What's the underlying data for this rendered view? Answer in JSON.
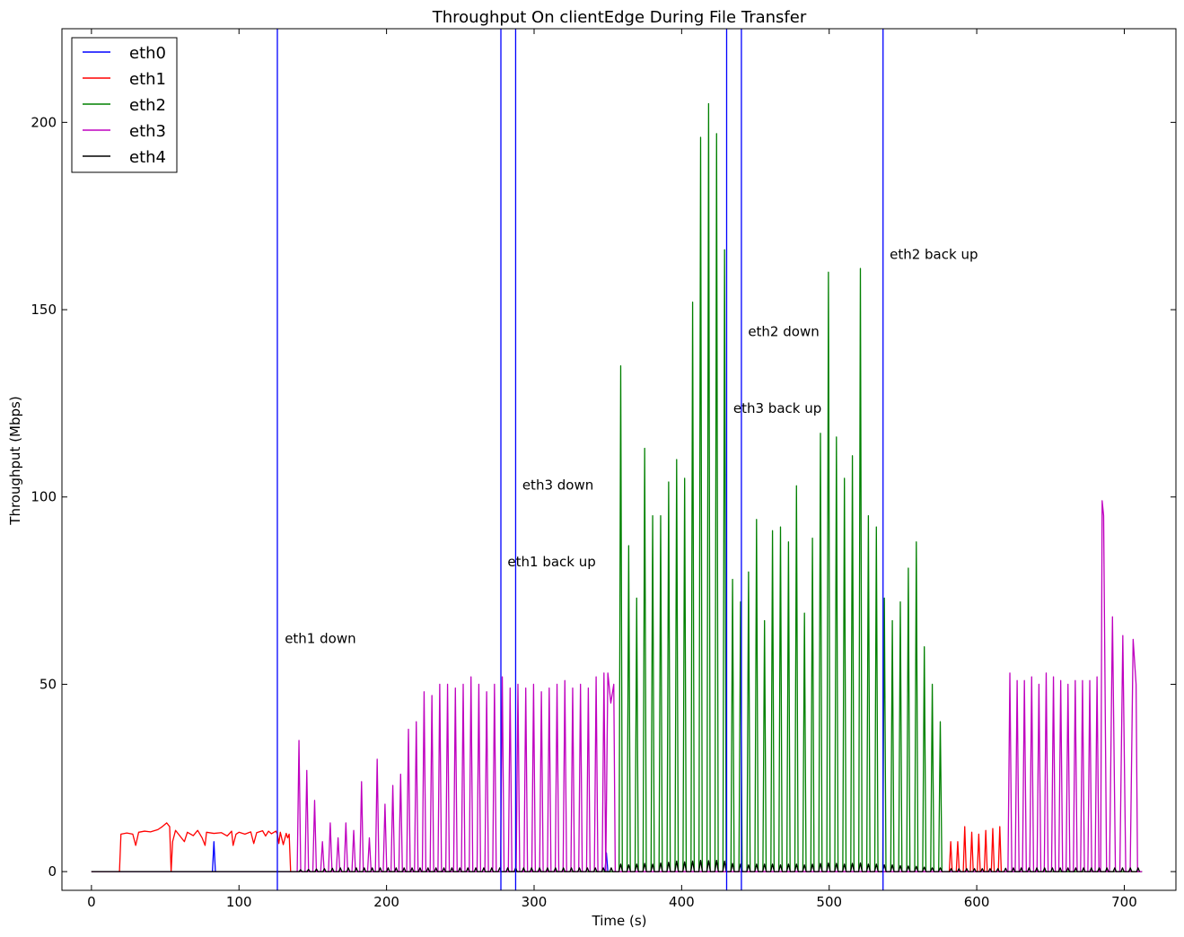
{
  "chart_data": {
    "type": "line",
    "title": "Throughput On clientEdge During File Transfer",
    "xlabel": "Time (s)",
    "ylabel": "Throughput (Mbps)",
    "xlim": [
      -20,
      735
    ],
    "ylim": [
      -5,
      225
    ],
    "xticks": [
      0,
      100,
      200,
      300,
      400,
      500,
      600,
      700
    ],
    "yticks": [
      0,
      50,
      100,
      150,
      200
    ],
    "grid": false,
    "legend_position": "top-left",
    "series": [
      {
        "name": "eth0",
        "color": "#0000ff",
        "segments": [
          {
            "type": "points",
            "points": [
              [
                0,
                0
              ],
              [
                82,
                0
              ],
              [
                83,
                8
              ],
              [
                84,
                0
              ],
              [
                348,
                0
              ],
              [
                349,
                5
              ],
              [
                350,
                0
              ],
              [
                712,
                0
              ]
            ]
          }
        ]
      },
      {
        "name": "eth1",
        "color": "#ff0000",
        "segments": [
          {
            "type": "points",
            "points": [
              [
                0,
                0
              ],
              [
                19,
                0
              ],
              [
                20,
                10
              ],
              [
                24,
                10.3
              ],
              [
                28,
                10
              ],
              [
                30,
                7
              ],
              [
                32,
                10.5
              ],
              [
                36,
                10.8
              ],
              [
                40,
                10.6
              ],
              [
                45,
                11.2
              ],
              [
                48,
                12
              ],
              [
                51,
                13
              ],
              [
                53,
                12
              ],
              [
                54,
                0
              ],
              [
                55,
                8
              ],
              [
                57,
                11
              ],
              [
                60,
                9.5
              ],
              [
                63,
                8
              ],
              [
                65,
                10.5
              ],
              [
                69,
                9.6
              ],
              [
                72,
                11
              ],
              [
                75,
                9
              ],
              [
                77,
                7
              ],
              [
                78,
                10.5
              ],
              [
                83,
                10.2
              ],
              [
                88,
                10.4
              ],
              [
                92,
                9.5
              ],
              [
                95,
                10.8
              ],
              [
                96,
                7
              ],
              [
                98,
                10
              ],
              [
                100,
                10.5
              ],
              [
                104,
                10
              ],
              [
                108,
                10.6
              ],
              [
                110,
                7.5
              ],
              [
                112,
                10.4
              ],
              [
                116,
                10.9
              ],
              [
                118,
                9.5
              ],
              [
                120,
                10.8
              ],
              [
                122,
                10.1
              ],
              [
                125,
                10.8
              ],
              [
                126,
                10
              ],
              [
                127,
                7.5
              ],
              [
                128,
                10.5
              ],
              [
                130,
                7.2
              ],
              [
                132,
                10.2
              ],
              [
                133,
                9
              ],
              [
                134,
                10
              ],
              [
                135,
                0
              ],
              [
                578,
                0
              ]
            ]
          },
          {
            "type": "pulses",
            "start": 580,
            "end": 618,
            "period": 5.3,
            "width": 2,
            "base": 0,
            "peaks": [
              8,
              8,
              12,
              10.5,
              10,
              11,
              11.5,
              12
            ]
          },
          {
            "type": "points",
            "points": [
              [
                619,
                0
              ],
              [
                712,
                0
              ]
            ]
          }
        ]
      },
      {
        "name": "eth2",
        "color": "#008000",
        "segments": [
          {
            "type": "points",
            "points": [
              [
                0,
                0
              ],
              [
                355,
                0
              ]
            ]
          },
          {
            "type": "pulses",
            "start": 356,
            "end": 578,
            "period": 5.3,
            "width": 2.2,
            "base": 0,
            "peaks": [
              135,
              87,
              73,
              113,
              95,
              95,
              104,
              110,
              105,
              152,
              196,
              205,
              197,
              166,
              78,
              72,
              80,
              94,
              67,
              91,
              92,
              88,
              103,
              69,
              89,
              117,
              160,
              116,
              105,
              111,
              161,
              95,
              92,
              73,
              67,
              72,
              81,
              88,
              60,
              50,
              40
            ]
          },
          {
            "type": "points",
            "points": [
              [
                579,
                0
              ],
              [
                712,
                0
              ]
            ]
          }
        ]
      },
      {
        "name": "eth3",
        "color": "#bf00bf",
        "segments": [
          {
            "type": "points",
            "points": [
              [
                0,
                0
              ],
              [
                136,
                0
              ]
            ]
          },
          {
            "type": "pulses",
            "start": 138,
            "end": 350,
            "period": 5.3,
            "width": 2.4,
            "base": 0,
            "peaks": [
              35,
              27,
              19,
              8,
              13,
              9,
              13,
              11,
              24,
              9,
              30,
              18,
              23,
              26,
              38,
              40,
              48,
              47,
              50,
              50,
              49,
              50,
              52,
              50,
              48,
              50,
              52,
              49,
              50,
              49,
              50,
              48,
              49,
              50,
              51,
              49,
              50,
              49,
              52,
              53
            ]
          },
          {
            "type": "points",
            "points": [
              [
                350,
                53
              ],
              [
                352,
                45
              ],
              [
                354,
                50
              ],
              [
                355,
                0
              ],
              [
                619,
                0
              ]
            ]
          },
          {
            "type": "pulses",
            "start": 620,
            "end": 684,
            "period": 5.3,
            "width": 2.6,
            "base": 0,
            "peaks": [
              53,
              51,
              51,
              52,
              50,
              53,
              52,
              51,
              50,
              51,
              51,
              51,
              52
            ]
          },
          {
            "type": "points",
            "points": [
              [
                684,
                0
              ],
              [
                685,
                99
              ],
              [
                686,
                95
              ],
              [
                688,
                0
              ],
              [
                690,
                0
              ],
              [
                692,
                68
              ],
              [
                694,
                0
              ],
              [
                697,
                0
              ],
              [
                699,
                63
              ],
              [
                701,
                0
              ],
              [
                704,
                0
              ],
              [
                706,
                62
              ],
              [
                708,
                50
              ],
              [
                709,
                0
              ],
              [
                712,
                0
              ]
            ]
          }
        ]
      },
      {
        "name": "eth4",
        "color": "#000000",
        "segments": [
          {
            "type": "points",
            "points": [
              [
                0,
                0
              ],
              [
                138,
                0
              ]
            ]
          },
          {
            "type": "pulses",
            "start": 139,
            "end": 355,
            "period": 5.3,
            "width": 2,
            "base": 0,
            "peaks": [
              0.5,
              0.6,
              0.7,
              0.8,
              0.9,
              1,
              1,
              1,
              1,
              1,
              1,
              1,
              1,
              1,
              1,
              1,
              1,
              1,
              1,
              1,
              1,
              1,
              1,
              1,
              1,
              1,
              1,
              1,
              1,
              1,
              1,
              1,
              1,
              1,
              1,
              1,
              1,
              1,
              1,
              1
            ]
          },
          {
            "type": "pulses",
            "start": 356,
            "end": 578,
            "period": 5.3,
            "width": 2.4,
            "base": 0,
            "peaks": [
              2,
              1.8,
              2,
              2.2,
              2,
              2.3,
              2.5,
              2.8,
              2.6,
              2.8,
              3,
              2.9,
              3,
              2.8,
              2.2,
              2,
              1.8,
              2,
              2,
              2,
              1.8,
              2,
              2,
              1.8,
              2,
              2.2,
              2.3,
              2.2,
              2,
              2.2,
              2.3,
              2,
              2,
              1.8,
              1.8,
              1.6,
              1.5,
              1.4,
              1.2,
              1,
              1
            ]
          },
          {
            "type": "pulses",
            "start": 580,
            "end": 712,
            "period": 5.3,
            "width": 2,
            "base": 0,
            "peaks": [
              0.8,
              0.8,
              0.8,
              0.8,
              0.8,
              0.8,
              0.8,
              0.9,
              1,
              1,
              1,
              1,
              1,
              1,
              1,
              1,
              1,
              1,
              1,
              1,
              1,
              1,
              1,
              1,
              1
            ]
          }
        ]
      }
    ],
    "vlines": {
      "color": "#0000ff",
      "x": [
        126,
        277.5,
        287.5,
        430.5,
        440.5,
        536.5
      ]
    },
    "annotations": [
      {
        "text": "eth1 down",
        "x": 131,
        "y": 61
      },
      {
        "text": "eth1 back up",
        "x": 282,
        "y": 81.5
      },
      {
        "text": "eth3 down",
        "x": 292,
        "y": 102
      },
      {
        "text": "eth3 back up",
        "x": 435,
        "y": 122.5
      },
      {
        "text": "eth2 down",
        "x": 445,
        "y": 143
      },
      {
        "text": "eth2 back up",
        "x": 541,
        "y": 163.5
      }
    ]
  }
}
